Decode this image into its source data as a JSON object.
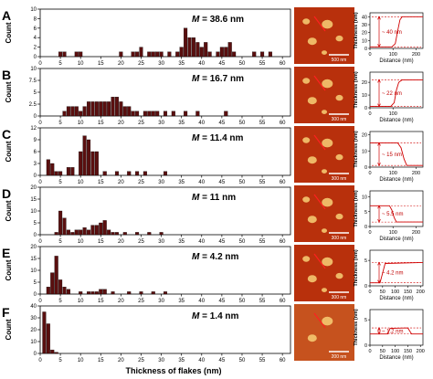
{
  "chart_data": {
    "type": "bar",
    "xlabel": "Thickness of flakes (nm)",
    "ylabel": "Count",
    "xlim": [
      0,
      62
    ],
    "xticks": [
      0,
      5,
      10,
      15,
      20,
      25,
      30,
      35,
      40,
      45,
      50,
      55,
      60
    ],
    "bar_color": "#5a0f0f",
    "panels": [
      {
        "letter": "A",
        "m_label": "M = 38.6 nm",
        "m_italic": "M",
        "m_rest": " = 38.6 nm",
        "ylim": [
          0,
          10
        ],
        "yticks": [
          0,
          2,
          4,
          6,
          8,
          10
        ],
        "bars": [
          [
            5,
            1
          ],
          [
            6,
            1
          ],
          [
            9,
            1
          ],
          [
            10,
            1
          ],
          [
            20,
            1
          ],
          [
            23,
            1
          ],
          [
            24,
            1
          ],
          [
            25,
            2
          ],
          [
            27,
            1
          ],
          [
            28,
            1
          ],
          [
            29,
            1
          ],
          [
            30,
            1
          ],
          [
            32,
            1
          ],
          [
            34,
            1
          ],
          [
            35,
            2
          ],
          [
            36,
            6
          ],
          [
            37,
            4
          ],
          [
            38,
            4
          ],
          [
            39,
            3
          ],
          [
            40,
            2
          ],
          [
            41,
            3
          ],
          [
            42,
            1
          ],
          [
            44,
            1
          ],
          [
            45,
            2
          ],
          [
            46,
            2
          ],
          [
            47,
            3
          ],
          [
            48,
            1
          ],
          [
            53,
            1
          ],
          [
            55,
            1
          ],
          [
            57,
            1
          ]
        ],
        "image_scale": "500 nm",
        "profile": {
          "yticks": [
            0,
            10,
            20,
            30,
            40
          ],
          "ylim": [
            0,
            45
          ],
          "xticks": [
            0,
            100,
            200
          ],
          "xlim": [
            0,
            230
          ],
          "step_height": 40,
          "step_at": 120,
          "annotation": "~ 40 nm",
          "points": [
            [
              0,
              2
            ],
            [
              95,
              2
            ],
            [
              110,
              6
            ],
            [
              120,
              22
            ],
            [
              130,
              36
            ],
            [
              140,
              40
            ],
            [
              230,
              40
            ]
          ]
        }
      },
      {
        "letter": "B",
        "m_label": "M = 16.7 nm",
        "m_italic": "M",
        "m_rest": " = 16.7 nm",
        "ylim": [
          0,
          10
        ],
        "yticks": [
          0,
          2.5,
          5,
          7.5,
          10
        ],
        "bars": [
          [
            6,
            1
          ],
          [
            7,
            2
          ],
          [
            8,
            2
          ],
          [
            9,
            2
          ],
          [
            10,
            1
          ],
          [
            11,
            2
          ],
          [
            12,
            3
          ],
          [
            13,
            3
          ],
          [
            14,
            3
          ],
          [
            15,
            3
          ],
          [
            16,
            3
          ],
          [
            17,
            3
          ],
          [
            18,
            4
          ],
          [
            19,
            4
          ],
          [
            20,
            3
          ],
          [
            21,
            2
          ],
          [
            22,
            2
          ],
          [
            23,
            1
          ],
          [
            24,
            1
          ],
          [
            26,
            1
          ],
          [
            27,
            1
          ],
          [
            28,
            1
          ],
          [
            29,
            1
          ],
          [
            31,
            1
          ],
          [
            33,
            1
          ],
          [
            36,
            1
          ],
          [
            39,
            1
          ],
          [
            46,
            1
          ]
        ],
        "image_scale": "300 nm",
        "profile": {
          "yticks": [
            0,
            10,
            20
          ],
          "ylim": [
            0,
            28
          ],
          "xticks": [
            0,
            100
          ],
          "xlim": [
            0,
            230
          ],
          "step_height": 22,
          "step_at": 120,
          "annotation": "~ 22 nm",
          "points": [
            [
              0,
              1
            ],
            [
              90,
              1
            ],
            [
              105,
              4
            ],
            [
              115,
              14
            ],
            [
              125,
              20
            ],
            [
              140,
              22
            ],
            [
              230,
              22
            ]
          ]
        }
      },
      {
        "letter": "C",
        "m_label": "M = 11.4 nm",
        "m_italic": "M",
        "m_rest": " = 11.4 nm",
        "ylim": [
          0,
          12
        ],
        "yticks": [
          0,
          3,
          6,
          9,
          12
        ],
        "bars": [
          [
            2,
            4
          ],
          [
            3,
            3
          ],
          [
            4,
            1
          ],
          [
            5,
            1
          ],
          [
            7,
            2
          ],
          [
            8,
            2
          ],
          [
            10,
            6
          ],
          [
            11,
            10
          ],
          [
            12,
            9
          ],
          [
            13,
            6
          ],
          [
            14,
            6
          ],
          [
            16,
            1
          ],
          [
            19,
            1
          ],
          [
            22,
            1
          ],
          [
            24,
            1
          ],
          [
            26,
            1
          ],
          [
            31,
            1
          ]
        ],
        "image_scale": "300 nm",
        "profile": {
          "yticks": [
            0,
            10,
            20
          ],
          "ylim": [
            0,
            22
          ],
          "xticks": [
            0,
            100,
            200
          ],
          "xlim": [
            0,
            230
          ],
          "step_height": 15,
          "step_at": 140,
          "annotation": "~ 15 nm",
          "points": [
            [
              0,
              15
            ],
            [
              120,
              15
            ],
            [
              135,
              12
            ],
            [
              148,
              5
            ],
            [
              160,
              1
            ],
            [
              230,
              1
            ]
          ]
        }
      },
      {
        "letter": "D",
        "m_label": "M = 11 nm",
        "m_italic": "M",
        "m_rest": " = 11 nm",
        "ylim": [
          0,
          20
        ],
        "yticks": [
          0,
          5,
          10,
          15,
          20
        ],
        "bars": [
          [
            4,
            1
          ],
          [
            5,
            10
          ],
          [
            6,
            7
          ],
          [
            7,
            2
          ],
          [
            8,
            1
          ],
          [
            9,
            2
          ],
          [
            10,
            2
          ],
          [
            11,
            3
          ],
          [
            12,
            2
          ],
          [
            13,
            4
          ],
          [
            14,
            4
          ],
          [
            15,
            5
          ],
          [
            16,
            6
          ],
          [
            17,
            2
          ],
          [
            18,
            1
          ],
          [
            19,
            1
          ],
          [
            21,
            1
          ],
          [
            24,
            1
          ],
          [
            27,
            1
          ],
          [
            30,
            1
          ]
        ],
        "image_scale": "300 nm",
        "profile": {
          "yticks": [
            0,
            5,
            10
          ],
          "ylim": [
            0,
            12
          ],
          "xticks": [
            0,
            100,
            200
          ],
          "xlim": [
            0,
            230
          ],
          "step_height": 5.5,
          "step_at": 110,
          "annotation": "~ 5.5 nm",
          "points": [
            [
              0,
              7
            ],
            [
              85,
              7
            ],
            [
              95,
              5.5
            ],
            [
              105,
              3
            ],
            [
              115,
              1.5
            ],
            [
              230,
              1.5
            ]
          ]
        }
      },
      {
        "letter": "E",
        "m_label": "M = 4.2 nm",
        "m_italic": "M",
        "m_rest": " = 4.2 nm",
        "ylim": [
          0,
          20
        ],
        "yticks": [
          0,
          5,
          10,
          15,
          20
        ],
        "bars": [
          [
            2,
            3
          ],
          [
            3,
            9
          ],
          [
            4,
            16
          ],
          [
            5,
            6
          ],
          [
            6,
            3
          ],
          [
            7,
            2
          ],
          [
            10,
            1
          ],
          [
            12,
            1
          ],
          [
            13,
            1
          ],
          [
            14,
            1
          ],
          [
            15,
            2
          ],
          [
            16,
            2
          ],
          [
            18,
            1
          ],
          [
            22,
            1
          ],
          [
            25,
            1
          ],
          [
            28,
            1
          ],
          [
            31,
            1
          ]
        ],
        "image_scale": "300 nm",
        "profile": {
          "yticks": [
            0,
            5
          ],
          "ylim": [
            0,
            7
          ],
          "xticks": [
            0,
            50,
            100,
            150,
            200
          ],
          "xlim": [
            0,
            210
          ],
          "step_height": 4.2,
          "step_at": 55,
          "annotation": "~ 4.2 nm",
          "points": [
            [
              0,
              0.6
            ],
            [
              40,
              0.6
            ],
            [
              50,
              2.5
            ],
            [
              60,
              4.4
            ],
            [
              210,
              4.6
            ]
          ]
        }
      },
      {
        "letter": "F",
        "m_label": "M = 1.4 nm",
        "m_italic": "M",
        "m_rest": " = 1.4 nm",
        "ylim": [
          0,
          40
        ],
        "yticks": [
          0,
          10,
          20,
          30,
          40
        ],
        "bars": [
          [
            1,
            35
          ],
          [
            2,
            25
          ],
          [
            3,
            3
          ],
          [
            4,
            1
          ]
        ],
        "image_scale": "200 nm",
        "profile": {
          "yticks": [
            0,
            5
          ],
          "ylim": [
            0,
            7
          ],
          "xticks": [
            0,
            50,
            100,
            150,
            200
          ],
          "xlim": [
            0,
            210
          ],
          "step_height": 1.2,
          "step_at": 80,
          "annotation": "~ 1.2 nm",
          "points": [
            [
              0,
              2.2
            ],
            [
              70,
              2.2
            ],
            [
              80,
              3.3
            ],
            [
              150,
              3.4
            ],
            [
              165,
              2.2
            ],
            [
              210,
              2.2
            ]
          ]
        }
      }
    ]
  }
}
